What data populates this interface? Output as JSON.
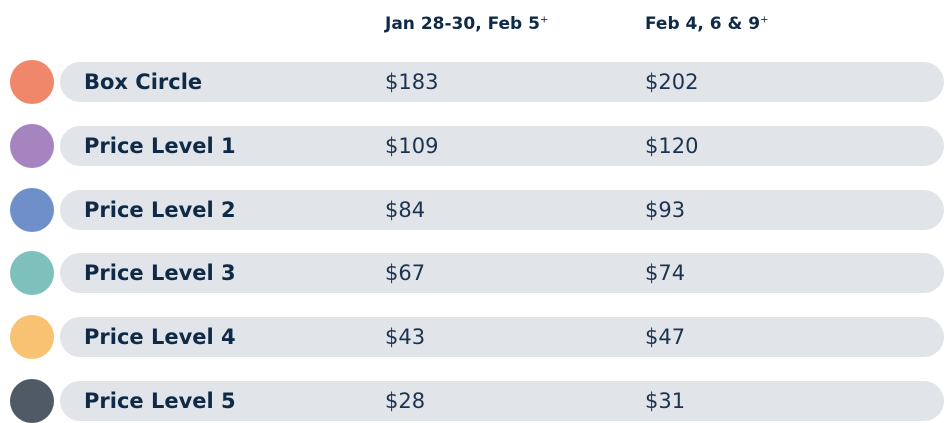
{
  "table": {
    "columns": [
      {
        "label": "Jan 28-30, Feb 5",
        "note": "+"
      },
      {
        "label": "Feb 4, 6 & 9",
        "note": "+"
      }
    ],
    "rows": [
      {
        "name": "Box Circle",
        "color": "#f0876a",
        "prices": [
          "$183",
          "$202"
        ]
      },
      {
        "name": "Price Level 1",
        "color": "#a584c0",
        "prices": [
          "$109",
          "$120"
        ]
      },
      {
        "name": "Price Level 2",
        "color": "#6f8fcb",
        "prices": [
          "$84",
          "$93"
        ]
      },
      {
        "name": "Price Level 3",
        "color": "#7ec0bc",
        "prices": [
          "$67",
          "$74"
        ]
      },
      {
        "name": "Price Level 4",
        "color": "#f9c273",
        "prices": [
          "$43",
          "$47"
        ]
      },
      {
        "name": "Price Level 5",
        "color": "#505a64",
        "prices": [
          "$28",
          "$31"
        ]
      }
    ]
  }
}
